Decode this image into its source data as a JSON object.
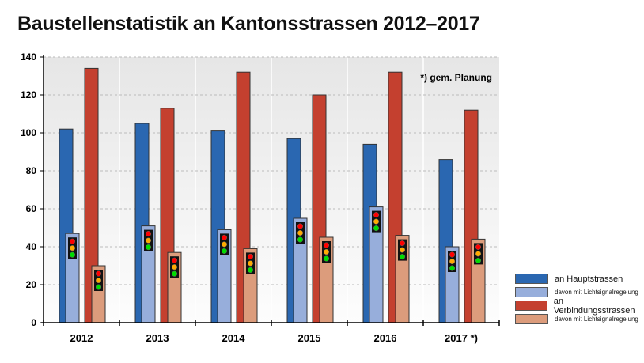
{
  "chart_data": {
    "type": "bar",
    "title": "Baustellenstatistik an Kantonsstrassen 2012–2017",
    "categories": [
      "2012",
      "2013",
      "2014",
      "2015",
      "2016",
      "2017 *)"
    ],
    "series": [
      {
        "name": "an Hauptstrassen",
        "color": "#2a67b1",
        "values": [
          102,
          105,
          101,
          97,
          94,
          86
        ]
      },
      {
        "name": "davon mit Lichtsignalregelung",
        "color": "#97aedb",
        "values": [
          47,
          51,
          49,
          55,
          61,
          40
        ]
      },
      {
        "name": "an Verbindungsstrassen",
        "color": "#c4402f",
        "values": [
          134,
          113,
          132,
          120,
          132,
          112
        ]
      },
      {
        "name": "davon mit Lichtsignalregelung",
        "color": "#dc9c7c",
        "values": [
          30,
          37,
          39,
          45,
          46,
          44
        ]
      }
    ],
    "ylim": [
      0,
      140
    ],
    "yticks": [
      0,
      20,
      40,
      60,
      80,
      100,
      120,
      140
    ],
    "grid": true,
    "legend": "bottom-right",
    "annotation": "*) gem. Planung",
    "icon": "traffic-light-icon"
  }
}
